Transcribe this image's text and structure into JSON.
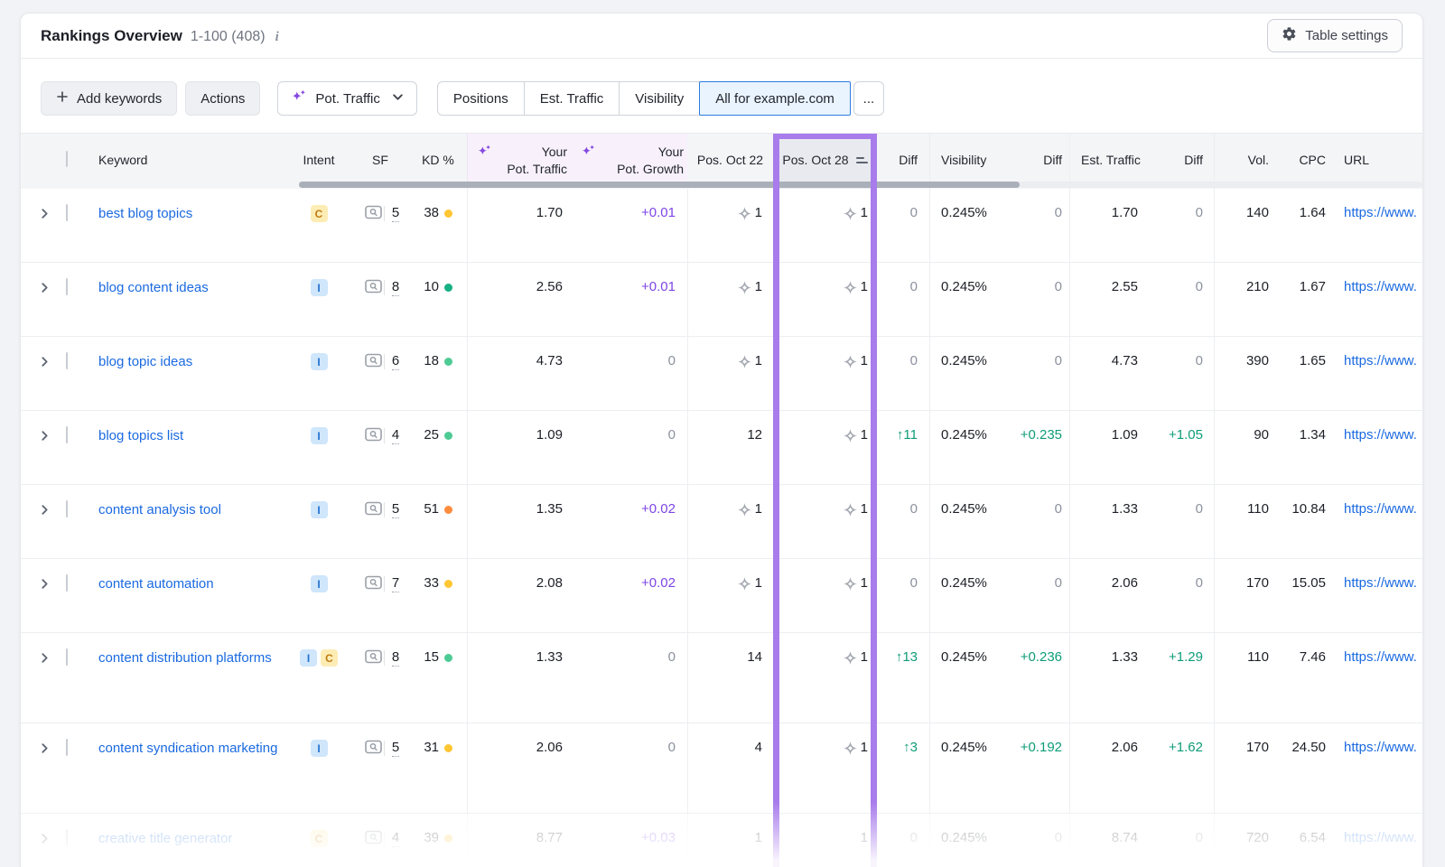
{
  "header": {
    "title": "Rankings Overview",
    "range": "1-100 (408)",
    "table_settings": "Table settings"
  },
  "toolbar": {
    "add_keywords": "Add keywords",
    "actions": "Actions",
    "metric_dropdown": "Pot. Traffic",
    "tabs": [
      "Positions",
      "Est. Traffic",
      "Visibility",
      "All for example.com"
    ],
    "selected_tab": "All for example.com",
    "more": "..."
  },
  "columns": {
    "keyword": "Keyword",
    "intent": "Intent",
    "sf": "SF",
    "kd": "KD %",
    "pot_traffic_line1": "Your",
    "pot_traffic_line2": "Pot. Traffic",
    "pot_growth_line1": "Your",
    "pot_growth_line2": "Pot. Growth",
    "pos_oct22": "Pos. Oct 22",
    "pos_oct28": "Pos. Oct 28",
    "diff": "Diff",
    "visibility": "Visibility",
    "diff2": "Diff",
    "est_traffic": "Est. Traffic",
    "diff3": "Diff",
    "vol": "Vol.",
    "cpc": "CPC",
    "url": "URL"
  },
  "colors": {
    "accent_purple": "#8649e1",
    "column_highlight": "#a87ceb",
    "positive_green": "#0e9c78",
    "link_blue": "#1b6ae0",
    "selected_tab_blue": "#2b7be0"
  },
  "rows": [
    {
      "keyword": "best blog topics",
      "intents": [
        "C"
      ],
      "sf": "5",
      "kd": "38",
      "kd_level": "yellow",
      "pot_traffic": "1.70",
      "pot_growth": "+0.01",
      "pot_growth_color": "purple",
      "pos22": {
        "icon": true,
        "value": "1"
      },
      "pos28": {
        "icon": true,
        "value": "1"
      },
      "diff1": {
        "text": "0",
        "color": "gray"
      },
      "visibility": "0.245%",
      "vis_diff": {
        "text": "0",
        "color": "gray"
      },
      "est_traffic": "1.70",
      "est_diff": {
        "text": "0",
        "color": "gray"
      },
      "vol": "140",
      "cpc": "1.64",
      "url": "https://www.",
      "faded": false
    },
    {
      "keyword": "blog content ideas",
      "intents": [
        "I"
      ],
      "sf": "8",
      "kd": "10",
      "kd_level": "teal",
      "pot_traffic": "2.56",
      "pot_growth": "+0.01",
      "pot_growth_color": "purple",
      "pos22": {
        "icon": true,
        "value": "1"
      },
      "pos28": {
        "icon": true,
        "value": "1"
      },
      "diff1": {
        "text": "0",
        "color": "gray"
      },
      "visibility": "0.245%",
      "vis_diff": {
        "text": "0",
        "color": "gray"
      },
      "est_traffic": "2.55",
      "est_diff": {
        "text": "0",
        "color": "gray"
      },
      "vol": "210",
      "cpc": "1.67",
      "url": "https://www.",
      "faded": false
    },
    {
      "keyword": "blog topic ideas",
      "intents": [
        "I"
      ],
      "sf": "6",
      "kd": "18",
      "kd_level": "green",
      "pot_traffic": "4.73",
      "pot_growth": "0",
      "pot_growth_color": "gray",
      "pos22": {
        "icon": true,
        "value": "1"
      },
      "pos28": {
        "icon": true,
        "value": "1"
      },
      "diff1": {
        "text": "0",
        "color": "gray"
      },
      "visibility": "0.245%",
      "vis_diff": {
        "text": "0",
        "color": "gray"
      },
      "est_traffic": "4.73",
      "est_diff": {
        "text": "0",
        "color": "gray"
      },
      "vol": "390",
      "cpc": "1.65",
      "url": "https://www.",
      "faded": false
    },
    {
      "keyword": "blog topics list",
      "intents": [
        "I"
      ],
      "sf": "4",
      "kd": "25",
      "kd_level": "green",
      "pot_traffic": "1.09",
      "pot_growth": "0",
      "pot_growth_color": "gray",
      "pos22": {
        "icon": false,
        "value": "12"
      },
      "pos28": {
        "icon": true,
        "value": "1"
      },
      "diff1": {
        "text": "↑11",
        "color": "green"
      },
      "visibility": "0.245%",
      "vis_diff": {
        "text": "+0.235",
        "color": "green"
      },
      "est_traffic": "1.09",
      "est_diff": {
        "text": "+1.05",
        "color": "green"
      },
      "vol": "90",
      "cpc": "1.34",
      "url": "https://www.",
      "faded": false
    },
    {
      "keyword": "content analysis tool",
      "intents": [
        "I"
      ],
      "sf": "5",
      "kd": "51",
      "kd_level": "orange",
      "pot_traffic": "1.35",
      "pot_growth": "+0.02",
      "pot_growth_color": "purple",
      "pos22": {
        "icon": true,
        "value": "1"
      },
      "pos28": {
        "icon": true,
        "value": "1"
      },
      "diff1": {
        "text": "0",
        "color": "gray"
      },
      "visibility": "0.245%",
      "vis_diff": {
        "text": "0",
        "color": "gray"
      },
      "est_traffic": "1.33",
      "est_diff": {
        "text": "0",
        "color": "gray"
      },
      "vol": "110",
      "cpc": "10.84",
      "url": "https://www.",
      "faded": false
    },
    {
      "keyword": "content automation",
      "intents": [
        "I"
      ],
      "sf": "7",
      "kd": "33",
      "kd_level": "yellow",
      "pot_traffic": "2.08",
      "pot_growth": "+0.02",
      "pot_growth_color": "purple",
      "pos22": {
        "icon": true,
        "value": "1"
      },
      "pos28": {
        "icon": true,
        "value": "1"
      },
      "diff1": {
        "text": "0",
        "color": "gray"
      },
      "visibility": "0.245%",
      "vis_diff": {
        "text": "0",
        "color": "gray"
      },
      "est_traffic": "2.06",
      "est_diff": {
        "text": "0",
        "color": "gray"
      },
      "vol": "170",
      "cpc": "15.05",
      "url": "https://www.",
      "faded": false
    },
    {
      "keyword": "content distribution platforms",
      "intents": [
        "I",
        "C"
      ],
      "sf": "8",
      "kd": "15",
      "kd_level": "green",
      "pot_traffic": "1.33",
      "pot_growth": "0",
      "pot_growth_color": "gray",
      "pos22": {
        "icon": false,
        "value": "14"
      },
      "pos28": {
        "icon": true,
        "value": "1"
      },
      "diff1": {
        "text": "↑13",
        "color": "green"
      },
      "visibility": "0.245%",
      "vis_diff": {
        "text": "+0.236",
        "color": "green"
      },
      "est_traffic": "1.33",
      "est_diff": {
        "text": "+1.29",
        "color": "green"
      },
      "vol": "110",
      "cpc": "7.46",
      "url": "https://www.",
      "faded": false
    },
    {
      "keyword": "content syndication marketing",
      "intents": [
        "I"
      ],
      "sf": "5",
      "kd": "31",
      "kd_level": "yellow",
      "pot_traffic": "2.06",
      "pot_growth": "0",
      "pot_growth_color": "gray",
      "pos22": {
        "icon": false,
        "value": "4"
      },
      "pos28": {
        "icon": true,
        "value": "1"
      },
      "diff1": {
        "text": "↑3",
        "color": "green"
      },
      "visibility": "0.245%",
      "vis_diff": {
        "text": "+0.192",
        "color": "green"
      },
      "est_traffic": "2.06",
      "est_diff": {
        "text": "+1.62",
        "color": "green"
      },
      "vol": "170",
      "cpc": "24.50",
      "url": "https://www.",
      "faded": false
    },
    {
      "keyword": "creative title generator",
      "intents": [
        "C"
      ],
      "sf": "4",
      "kd": "39",
      "kd_level": "yellow",
      "pot_traffic": "8.77",
      "pot_growth": "+0.03",
      "pot_growth_color": "purple",
      "pos22": {
        "icon": false,
        "value": "1"
      },
      "pos28": {
        "icon": false,
        "value": "1"
      },
      "diff1": {
        "text": "0",
        "color": "gray"
      },
      "visibility": "0.245%",
      "vis_diff": {
        "text": "0",
        "color": "gray"
      },
      "est_traffic": "8.74",
      "est_diff": {
        "text": "0",
        "color": "gray"
      },
      "vol": "720",
      "cpc": "6.54",
      "url": "https://www.",
      "faded": true
    }
  ]
}
